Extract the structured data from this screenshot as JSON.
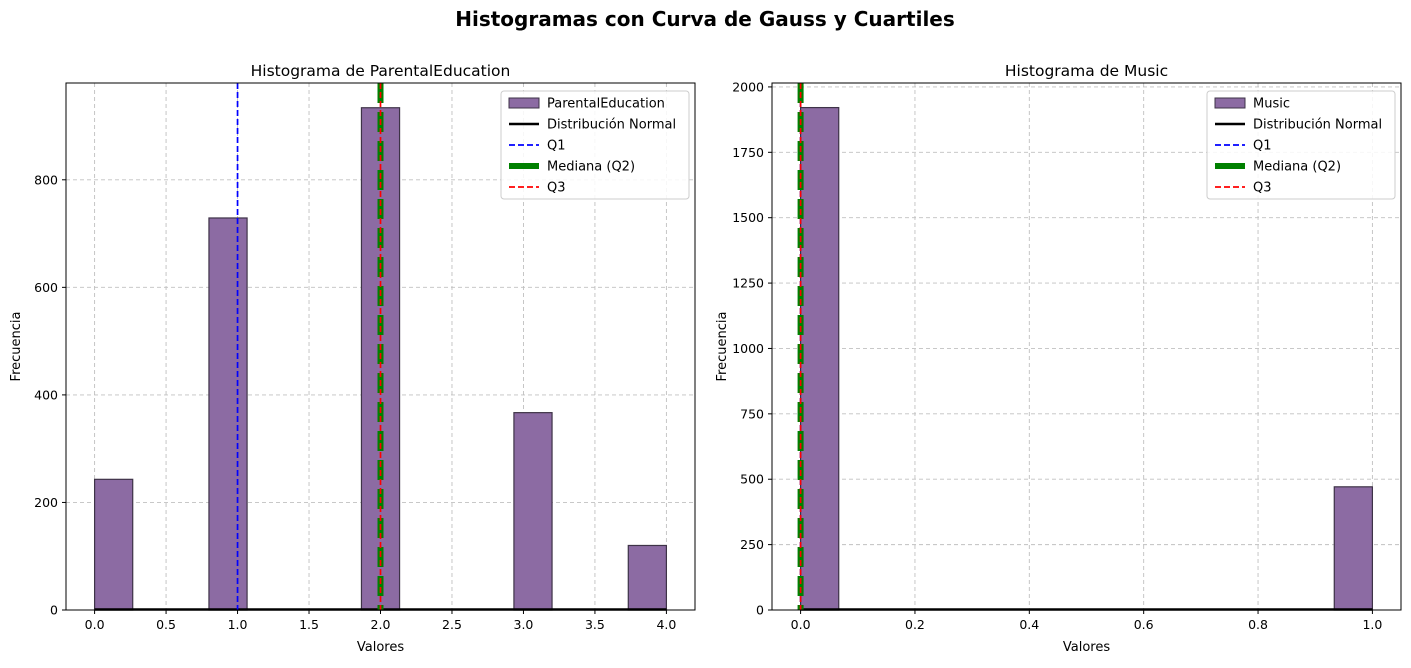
{
  "suptitle": "Histogramas con Curva de Gauss y Cuartiles",
  "colors": {
    "bar_fill": "#8c6ba3",
    "bar_edge": "#3e3347",
    "normal": "#000000",
    "q1": "#0000ff",
    "median": "#008000",
    "q3": "#ff0000",
    "grid": "#c0c0c0"
  },
  "chart_data": [
    {
      "type": "bar",
      "title": "Histograma de ParentalEducation",
      "xlabel": "Valores",
      "ylabel": "Frecuencia",
      "xlim": [
        -0.2,
        4.2
      ],
      "ylim": [
        0,
        980
      ],
      "xticks": [
        0.0,
        0.5,
        1.0,
        1.5,
        2.0,
        2.5,
        3.0,
        3.5,
        4.0
      ],
      "xtick_labels": [
        "0.0",
        "0.5",
        "1.0",
        "1.5",
        "2.0",
        "2.5",
        "3.0",
        "3.5",
        "4.0"
      ],
      "yticks": [
        0,
        200,
        400,
        600,
        800
      ],
      "ytick_labels": [
        "0",
        "200",
        "400",
        "600",
        "800"
      ],
      "grid": true,
      "legend_position": "upper right",
      "bin_width": 0.2667,
      "bins": [
        {
          "x0": 0.0,
          "value": 243
        },
        {
          "x0": 0.8,
          "value": 729
        },
        {
          "x0": 1.8667,
          "value": 934
        },
        {
          "x0": 2.9333,
          "value": 367
        },
        {
          "x0": 3.7333,
          "value": 120
        }
      ],
      "normal_curve_peak": 1,
      "q1": 1.0,
      "median": 2.0,
      "q3": 2.0,
      "legend": [
        "ParentalEducation",
        "Distribución Normal",
        "Q1",
        "Mediana (Q2)",
        "Q3"
      ]
    },
    {
      "type": "bar",
      "title": "Histograma de Music",
      "xlabel": "Valores",
      "ylabel": "Frecuencia",
      "xlim": [
        -0.05,
        1.05
      ],
      "ylim": [
        0,
        2015
      ],
      "xticks": [
        0.0,
        0.2,
        0.4,
        0.6,
        0.8,
        1.0
      ],
      "xtick_labels": [
        "0.0",
        "0.2",
        "0.4",
        "0.6",
        "0.8",
        "1.0"
      ],
      "yticks": [
        0,
        250,
        500,
        750,
        1000,
        1250,
        1500,
        1750,
        2000
      ],
      "ytick_labels": [
        "0",
        "250",
        "500",
        "750",
        "1000",
        "1250",
        "1500",
        "1750",
        "2000"
      ],
      "grid": true,
      "legend_position": "upper right",
      "bin_width": 0.0667,
      "bins": [
        {
          "x0": 0.0,
          "value": 1921
        },
        {
          "x0": 0.9333,
          "value": 471
        }
      ],
      "normal_curve_peak": 2,
      "q1": 0.0,
      "median": 0.0,
      "q3": 0.0,
      "legend": [
        "Music",
        "Distribución Normal",
        "Q1",
        "Mediana (Q2)",
        "Q3"
      ]
    }
  ]
}
